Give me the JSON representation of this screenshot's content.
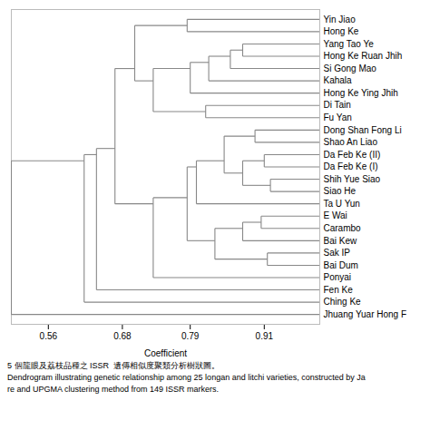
{
  "chart_data": {
    "type": "dendrogram",
    "labels": [
      "Bai Dum",
      "Sak IP",
      "Bai Kew",
      "Carambo",
      "E Wai",
      "Ta U Yun",
      "Siao He",
      "Shih Yue Siao",
      "Da Feb Ke (I)",
      "Da Feb Ke (II)",
      "Shao An Liao",
      "Dong Shan Fong Li",
      "Ponyai",
      "Fu Yan",
      "Di Tain",
      "Hong Ke Ruan Jhih",
      "Yang Tao Ye",
      "Si Gong Mao",
      "Kahala",
      "Hong Ke Ying Jhih",
      "Hong Ke",
      "Yin Jiao",
      "Fen Ke",
      "Ching Ke",
      "Jhuang Yuar Hong F"
    ],
    "merges": [
      [
        0,
        1,
        0.915
      ],
      [
        3,
        4,
        0.905
      ],
      [
        2,
        26,
        0.875
      ],
      [
        25,
        27,
        0.83
      ],
      [
        6,
        7,
        0.92
      ],
      [
        8,
        9,
        0.91
      ],
      [
        29,
        30,
        0.875
      ],
      [
        10,
        11,
        0.895
      ],
      [
        31,
        32,
        0.845
      ],
      [
        5,
        33,
        0.8
      ],
      [
        28,
        34,
        0.785
      ],
      [
        12,
        35,
        0.73
      ],
      [
        13,
        14,
        0.815
      ],
      [
        15,
        16,
        0.875
      ],
      [
        17,
        38,
        0.855
      ],
      [
        18,
        39,
        0.82
      ],
      [
        19,
        40,
        0.79
      ],
      [
        37,
        41,
        0.73
      ],
      [
        20,
        21,
        0.785
      ],
      [
        42,
        43,
        0.7
      ],
      [
        36,
        44,
        0.668
      ],
      [
        22,
        45,
        0.638
      ],
      [
        23,
        46,
        0.618
      ],
      [
        24,
        47,
        0.5
      ]
    ],
    "xlabel": "Coefficient",
    "xlim": [
      0.5,
      1.0
    ],
    "xticks": [
      0.56,
      0.68,
      0.79,
      0.91
    ],
    "tick_labels": "x",
    "color": "#888888",
    "caption": [
      "5 個龍眼及荔枝品種之 ISSR  遺傳相似度聚類分析樹狀圖。",
      "Dendrogram illustrating genetic relationship among 25 longan and litchi varieties, constructed by Ja",
      "re and UPGMA clustering method from 149 ISSR markers."
    ]
  }
}
